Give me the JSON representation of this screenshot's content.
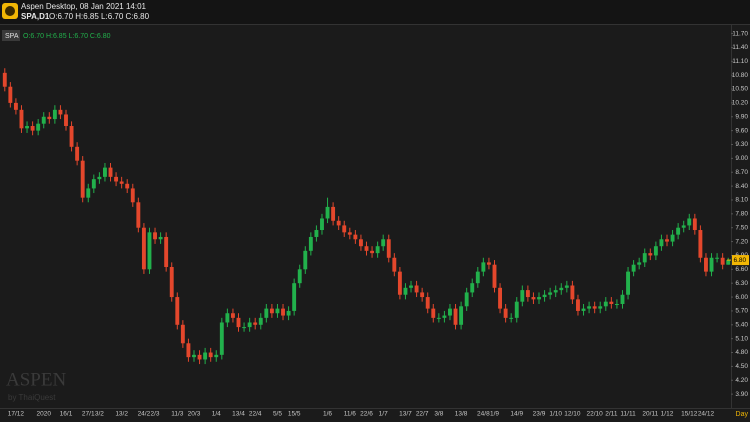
{
  "header": {
    "app_title": "Aspen Desktop, 08 Jan 2021 14:01",
    "symbol_line": "SPA,D1",
    "ohlc_text": "O:6.70 H:6.85 L:6.70 C:6.80"
  },
  "chart_data": {
    "type": "candlestick",
    "symbol": "SPA",
    "legend_text": "O:6.70 H:6.85 L:6.70 C:6.80",
    "up_color": "#22b14c",
    "down_color": "#e4472c",
    "grid": false,
    "ylim": [
      3.6,
      11.95
    ],
    "yticks": [
      {
        "value": 11.7,
        "label": "11.70"
      },
      {
        "value": 11.4,
        "label": "11.40"
      },
      {
        "value": 11.1,
        "label": "11.10"
      },
      {
        "value": 10.8,
        "label": "10.80"
      },
      {
        "value": 10.5,
        "label": "10.50"
      },
      {
        "value": 10.2,
        "label": "10.20"
      },
      {
        "value": 9.9,
        "label": "9.90"
      },
      {
        "value": 9.6,
        "label": "9.60"
      },
      {
        "value": 9.3,
        "label": "9.30"
      },
      {
        "value": 9,
        "label": "9.00"
      },
      {
        "value": 8.7,
        "label": "8.70"
      },
      {
        "value": 8.4,
        "label": "8.40"
      },
      {
        "value": 8.1,
        "label": "8.10"
      },
      {
        "value": 7.8,
        "label": "7.80"
      },
      {
        "value": 7.5,
        "label": "7.50"
      },
      {
        "value": 7.2,
        "label": "7.20"
      },
      {
        "value": 6.9,
        "label": "6.90"
      },
      {
        "value": 6.6,
        "label": "6.60"
      },
      {
        "value": 6.3,
        "label": "6.30"
      },
      {
        "value": 6,
        "label": "6.00"
      },
      {
        "value": 5.7,
        "label": "5.70"
      },
      {
        "value": 5.4,
        "label": "5.40"
      },
      {
        "value": 5.1,
        "label": "5.10"
      },
      {
        "value": 4.8,
        "label": "4.80"
      },
      {
        "value": 4.5,
        "label": "4.50"
      },
      {
        "value": 4.2,
        "label": "4.20"
      },
      {
        "value": 3.9,
        "label": "3.90"
      }
    ],
    "last_price": {
      "value": 6.8,
      "label": "6.80"
    },
    "timeframe": "Day",
    "watermark": "ASPEN",
    "watermark_sub": "by ThaiQuest",
    "categories": [
      null,
      null,
      "17/12",
      null,
      null,
      null,
      null,
      "2020",
      null,
      null,
      null,
      "16/1",
      null,
      null,
      null,
      "27/1",
      null,
      "3/2",
      null,
      null,
      null,
      "13/2",
      null,
      null,
      null,
      "24/2",
      null,
      "2/3",
      null,
      null,
      null,
      "11/3",
      null,
      null,
      "20/3",
      null,
      null,
      null,
      "1/4",
      null,
      null,
      null,
      "13/4",
      null,
      null,
      "22/4",
      null,
      null,
      null,
      "5/5",
      null,
      null,
      "15/5",
      null,
      null,
      null,
      null,
      null,
      "1/6",
      null,
      null,
      null,
      "11/6",
      null,
      null,
      "22/6",
      null,
      null,
      "1/7",
      null,
      null,
      null,
      "13/7",
      null,
      null,
      "22/7",
      null,
      null,
      "3/8",
      null,
      null,
      null,
      "13/8",
      null,
      null,
      null,
      "24/8",
      null,
      "1/9",
      null,
      null,
      null,
      "14/9",
      null,
      null,
      null,
      "23/9",
      null,
      null,
      "1/10",
      null,
      null,
      "12/10",
      null,
      null,
      null,
      "22/10",
      null,
      null,
      "2/11",
      null,
      null,
      "11/11",
      null,
      null,
      null,
      "20/11",
      null,
      null,
      "1/12",
      null,
      null,
      null,
      "15/12",
      null,
      null,
      "24/12",
      null,
      null,
      null,
      null
    ],
    "open": [
      10.85,
      10.55,
      10.2,
      10.05,
      9.65,
      9.7,
      9.6,
      9.75,
      9.9,
      9.85,
      10.05,
      9.95,
      9.7,
      9.25,
      8.95,
      8.15,
      8.35,
      8.55,
      8.6,
      8.8,
      8.6,
      8.5,
      8.45,
      8.35,
      8.05,
      7.5,
      6.6,
      7.4,
      7.25,
      7.3,
      6.65,
      6.0,
      5.4,
      5.0,
      4.7,
      4.75,
      4.65,
      4.8,
      4.7,
      4.75,
      5.45,
      5.65,
      5.55,
      5.35,
      5.35,
      5.45,
      5.4,
      5.55,
      5.75,
      5.65,
      5.75,
      5.6,
      5.7,
      6.3,
      6.6,
      7.0,
      7.3,
      7.45,
      7.7,
      7.95,
      7.65,
      7.55,
      7.4,
      7.35,
      7.25,
      7.1,
      7.0,
      6.95,
      7.1,
      7.25,
      6.85,
      6.55,
      6.05,
      6.2,
      6.25,
      6.1,
      6.0,
      5.75,
      5.55,
      5.55,
      5.6,
      5.75,
      5.4,
      5.8,
      6.1,
      6.3,
      6.55,
      6.75,
      6.7,
      6.2,
      5.75,
      5.55,
      5.55,
      5.9,
      6.15,
      6.0,
      5.95,
      6.0,
      6.05,
      6.1,
      6.15,
      6.2,
      6.25,
      5.95,
      5.7,
      5.75,
      5.8,
      5.75,
      5.8,
      5.9,
      5.85,
      5.85,
      6.05,
      6.55,
      6.7,
      6.75,
      6.95,
      6.9,
      7.1,
      7.25,
      7.2,
      7.35,
      7.5,
      7.55,
      7.7,
      7.45,
      6.85,
      6.55,
      6.85,
      6.85,
      6.7
    ],
    "high": [
      10.95,
      10.65,
      10.3,
      10.15,
      9.8,
      9.8,
      9.85,
      10.0,
      10.0,
      10.15,
      10.15,
      10.05,
      9.8,
      9.35,
      9.05,
      8.45,
      8.65,
      8.7,
      8.9,
      8.9,
      8.7,
      8.6,
      8.55,
      8.45,
      8.15,
      7.6,
      7.5,
      7.5,
      7.4,
      7.4,
      6.75,
      6.1,
      5.5,
      5.1,
      4.85,
      4.85,
      4.9,
      4.9,
      4.85,
      5.55,
      5.75,
      5.75,
      5.65,
      5.45,
      5.55,
      5.55,
      5.65,
      5.85,
      5.85,
      5.85,
      5.85,
      5.8,
      6.4,
      6.7,
      7.1,
      7.4,
      7.55,
      7.8,
      8.15,
      8.05,
      7.75,
      7.65,
      7.5,
      7.45,
      7.35,
      7.2,
      7.1,
      7.2,
      7.35,
      7.35,
      6.95,
      6.65,
      6.3,
      6.35,
      6.35,
      6.2,
      6.1,
      5.85,
      5.65,
      5.7,
      5.85,
      5.85,
      5.9,
      6.2,
      6.4,
      6.65,
      6.85,
      6.85,
      6.8,
      6.3,
      5.85,
      5.65,
      6.0,
      6.25,
      6.25,
      6.1,
      6.1,
      6.15,
      6.2,
      6.25,
      6.3,
      6.35,
      6.35,
      6.05,
      5.85,
      5.9,
      5.9,
      5.9,
      6.0,
      6.0,
      5.95,
      6.15,
      6.65,
      6.8,
      6.85,
      7.05,
      7.05,
      7.2,
      7.35,
      7.35,
      7.45,
      7.6,
      7.65,
      7.8,
      7.8,
      7.55,
      6.95,
      6.95,
      6.95,
      6.95,
      6.85
    ],
    "low": [
      10.45,
      10.1,
      9.95,
      9.55,
      9.55,
      9.5,
      9.5,
      9.65,
      9.75,
      9.75,
      9.85,
      9.6,
      9.15,
      8.85,
      8.05,
      8.05,
      8.25,
      8.45,
      8.5,
      8.5,
      8.4,
      8.35,
      8.25,
      7.95,
      7.4,
      6.5,
      6.5,
      7.15,
      7.15,
      6.55,
      5.9,
      5.3,
      4.9,
      4.6,
      4.6,
      4.55,
      4.55,
      4.6,
      4.6,
      4.65,
      5.35,
      5.45,
      5.25,
      5.25,
      5.25,
      5.3,
      5.3,
      5.45,
      5.55,
      5.55,
      5.5,
      5.5,
      5.6,
      6.2,
      6.5,
      6.9,
      7.2,
      7.35,
      7.6,
      7.55,
      7.45,
      7.3,
      7.25,
      7.15,
      7.0,
      6.9,
      6.85,
      6.85,
      7.0,
      6.75,
      6.45,
      5.95,
      5.95,
      6.1,
      6.0,
      5.9,
      5.65,
      5.45,
      5.45,
      5.45,
      5.5,
      5.3,
      5.3,
      5.7,
      6.0,
      6.2,
      6.45,
      6.6,
      6.1,
      5.65,
      5.45,
      5.45,
      5.45,
      5.8,
      5.9,
      5.85,
      5.85,
      5.9,
      5.95,
      6.0,
      6.05,
      6.1,
      5.85,
      5.6,
      5.6,
      5.65,
      5.65,
      5.65,
      5.7,
      5.75,
      5.75,
      5.75,
      5.95,
      6.45,
      6.6,
      6.65,
      6.8,
      6.8,
      7.0,
      7.1,
      7.1,
      7.25,
      7.4,
      7.45,
      7.35,
      6.75,
      6.45,
      6.45,
      6.75,
      6.6,
      6.7
    ],
    "close": [
      10.55,
      10.2,
      10.05,
      9.65,
      9.7,
      9.6,
      9.75,
      9.9,
      9.85,
      10.05,
      9.95,
      9.7,
      9.25,
      8.95,
      8.15,
      8.35,
      8.55,
      8.6,
      8.8,
      8.6,
      8.5,
      8.45,
      8.35,
      8.05,
      7.5,
      6.6,
      7.4,
      7.25,
      7.3,
      6.65,
      6.0,
      5.4,
      5.0,
      4.7,
      4.75,
      4.65,
      4.8,
      4.7,
      4.75,
      5.45,
      5.65,
      5.55,
      5.35,
      5.35,
      5.45,
      5.4,
      5.55,
      5.75,
      5.65,
      5.75,
      5.6,
      5.7,
      6.3,
      6.6,
      7.0,
      7.3,
      7.45,
      7.7,
      7.95,
      7.65,
      7.55,
      7.4,
      7.35,
      7.25,
      7.1,
      7.0,
      6.95,
      7.1,
      7.25,
      6.85,
      6.55,
      6.05,
      6.2,
      6.25,
      6.1,
      6.0,
      5.75,
      5.55,
      5.55,
      5.6,
      5.75,
      5.4,
      5.8,
      6.1,
      6.3,
      6.55,
      6.75,
      6.7,
      6.2,
      5.75,
      5.55,
      5.55,
      5.9,
      6.15,
      6.0,
      5.95,
      6.0,
      6.05,
      6.1,
      6.15,
      6.2,
      6.25,
      5.95,
      5.7,
      5.75,
      5.8,
      5.75,
      5.8,
      5.9,
      5.85,
      5.85,
      6.05,
      6.55,
      6.7,
      6.75,
      6.95,
      6.9,
      7.1,
      7.25,
      7.2,
      7.35,
      7.5,
      7.55,
      7.7,
      7.45,
      6.85,
      6.55,
      6.85,
      6.85,
      6.7,
      6.8
    ]
  }
}
